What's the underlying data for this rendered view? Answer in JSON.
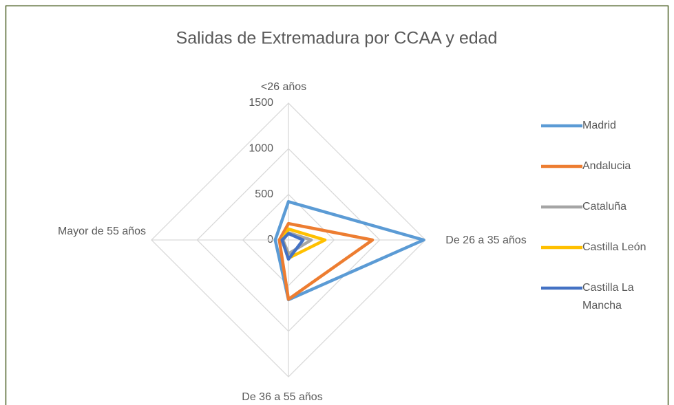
{
  "chart_data": {
    "type": "radar",
    "title": "Salidas de Extremadura por CCAA y edad",
    "categories": [
      "<26 años",
      "De 26 a 35 años",
      "De 36 a 55 años",
      "Mayor de 55 años"
    ],
    "series": [
      {
        "name": "Madrid",
        "color": "#5b9bd5",
        "values": [
          420,
          1480,
          655,
          145
        ]
      },
      {
        "name": "Andalucia",
        "color": "#ed7d31",
        "values": [
          180,
          920,
          650,
          100
        ]
      },
      {
        "name": "Cataluña",
        "color": "#a5a5a5",
        "values": [
          80,
          250,
          150,
          60
        ]
      },
      {
        "name": "Castilla León",
        "color": "#ffc000",
        "values": [
          120,
          400,
          200,
          70
        ]
      },
      {
        "name": "Castilla La Mancha",
        "color": "#4472c4",
        "values": [
          70,
          160,
          210,
          70
        ]
      }
    ],
    "ylim": [
      0,
      1500
    ],
    "yticks": [
      0,
      500,
      1000,
      1500
    ],
    "grid": true,
    "legend": "right"
  }
}
